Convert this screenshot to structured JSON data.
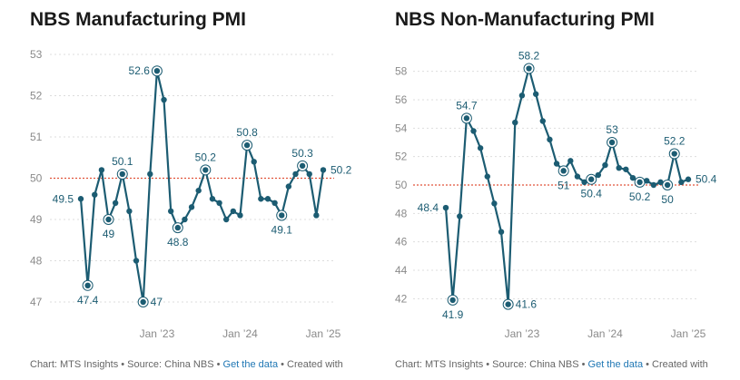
{
  "colors": {
    "line": "#1c5c72",
    "reference": "#e0533a",
    "grid": "#dddddd",
    "label": "#1c5c72"
  },
  "chart_data": [
    {
      "type": "line",
      "title": "NBS Manufacturing PMI",
      "ylim": [
        47,
        53
      ],
      "yticks": [
        47,
        48,
        49,
        50,
        51,
        52,
        53
      ],
      "reference_line": 50,
      "x_tick_labels": [
        {
          "index": 11,
          "label": "Jan ’23"
        },
        {
          "index": 23,
          "label": "Jan ’24"
        },
        {
          "index": 35,
          "label": "Jan ’25"
        }
      ],
      "values": [
        49.5,
        47.4,
        49.6,
        50.2,
        49.0,
        49.4,
        50.1,
        49.2,
        48.0,
        47.0,
        50.1,
        52.6,
        51.9,
        49.2,
        48.8,
        49.0,
        49.3,
        49.7,
        50.2,
        49.5,
        49.4,
        49.0,
        49.2,
        49.1,
        50.8,
        50.4,
        49.5,
        49.5,
        49.4,
        49.1,
        49.8,
        50.1,
        50.3,
        50.1,
        49.1,
        50.2
      ],
      "markers": [
        1,
        4,
        6,
        9,
        11,
        14,
        18,
        24,
        29,
        32
      ],
      "data_labels": [
        {
          "index": 0,
          "text": "49.5",
          "pos": "left"
        },
        {
          "index": 1,
          "text": "47.4",
          "pos": "below"
        },
        {
          "index": 4,
          "text": "49",
          "pos": "below"
        },
        {
          "index": 6,
          "text": "50.1",
          "pos": "above"
        },
        {
          "index": 9,
          "text": "47",
          "pos": "right"
        },
        {
          "index": 11,
          "text": "52.6",
          "pos": "left"
        },
        {
          "index": 14,
          "text": "48.8",
          "pos": "below"
        },
        {
          "index": 18,
          "text": "50.2",
          "pos": "above"
        },
        {
          "index": 24,
          "text": "50.8",
          "pos": "above"
        },
        {
          "index": 29,
          "text": "49.1",
          "pos": "below"
        },
        {
          "index": 32,
          "text": "50.3",
          "pos": "above"
        },
        {
          "index": 35,
          "text": "50.2",
          "pos": "right"
        }
      ],
      "source": {
        "prefix": "Chart: MTS Insights • Source: China NBS • ",
        "link": "Get the data",
        "suffix": " • Created with"
      }
    },
    {
      "type": "line",
      "title": "NBS Non-Manufacturing PMI",
      "ylim": [
        41,
        59
      ],
      "yticks": [
        42,
        44,
        46,
        48,
        50,
        52,
        54,
        56,
        58
      ],
      "reference_line": 50,
      "x_tick_labels": [
        {
          "index": 11,
          "label": "Jan ’23"
        },
        {
          "index": 23,
          "label": "Jan ’24"
        },
        {
          "index": 35,
          "label": "Jan ’25"
        }
      ],
      "values": [
        48.4,
        41.9,
        47.8,
        54.7,
        53.8,
        52.6,
        50.6,
        48.7,
        46.7,
        41.6,
        54.4,
        56.3,
        58.2,
        56.4,
        54.5,
        53.2,
        51.5,
        51.0,
        51.7,
        50.6,
        50.2,
        50.4,
        50.7,
        51.4,
        53.0,
        51.2,
        51.1,
        50.5,
        50.2,
        50.3,
        50.0,
        50.2,
        50.0,
        52.2,
        50.2,
        50.4
      ],
      "markers": [
        1,
        3,
        9,
        12,
        17,
        21,
        24,
        28,
        32,
        33
      ],
      "data_labels": [
        {
          "index": 0,
          "text": "48.4",
          "pos": "left"
        },
        {
          "index": 1,
          "text": "41.9",
          "pos": "below"
        },
        {
          "index": 3,
          "text": "54.7",
          "pos": "above"
        },
        {
          "index": 9,
          "text": "41.6",
          "pos": "right"
        },
        {
          "index": 12,
          "text": "58.2",
          "pos": "above"
        },
        {
          "index": 17,
          "text": "51",
          "pos": "below"
        },
        {
          "index": 21,
          "text": "50.4",
          "pos": "below"
        },
        {
          "index": 24,
          "text": "53",
          "pos": "above"
        },
        {
          "index": 28,
          "text": "50.2",
          "pos": "below"
        },
        {
          "index": 32,
          "text": "50",
          "pos": "below"
        },
        {
          "index": 33,
          "text": "52.2",
          "pos": "above"
        },
        {
          "index": 35,
          "text": "50.4",
          "pos": "right"
        }
      ],
      "source": {
        "prefix": "Chart: MTS Insights • Source: China NBS • ",
        "link": "Get the data",
        "suffix": " • Created with"
      }
    }
  ]
}
